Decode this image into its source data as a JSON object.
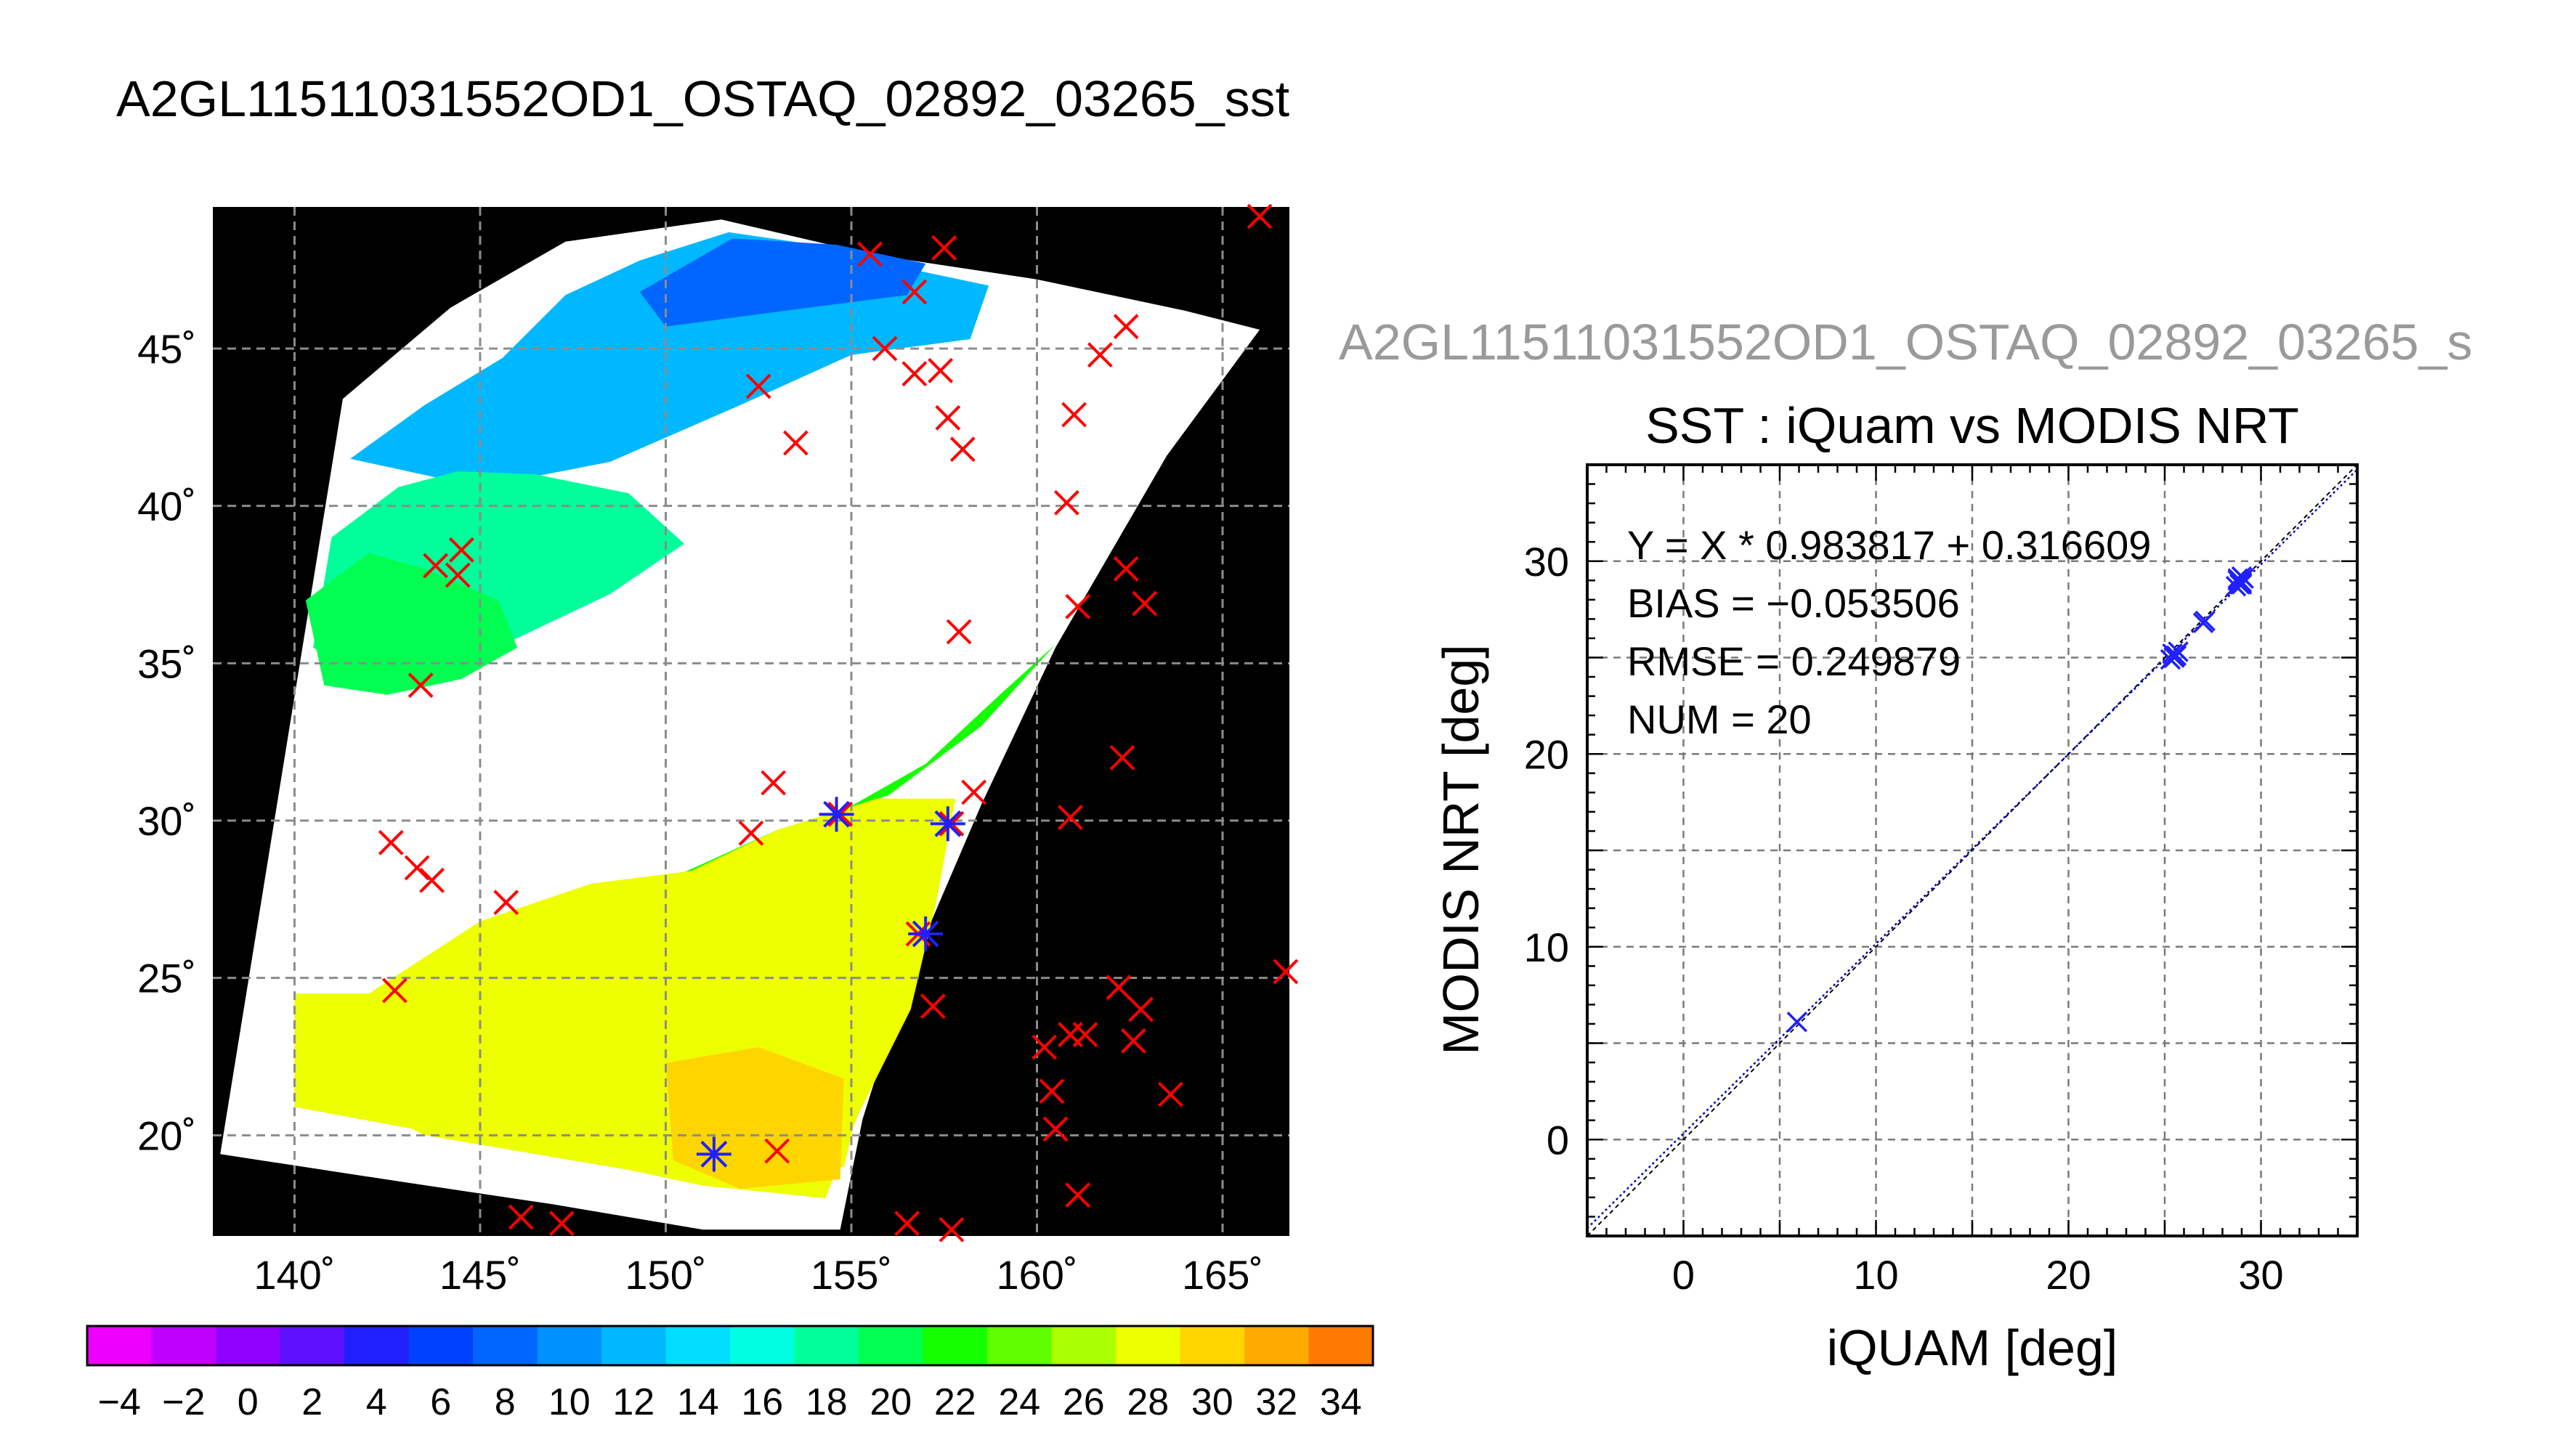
{
  "figure": {
    "main_title": "A2GL11511031552OD1_OSTAQ_02892_03265_sst",
    "right_title": "A2GL11511031552OD1_OSTAQ_02892_03265_s"
  },
  "chart_data": [
    {
      "type": "heatmap",
      "name": "sst-map",
      "lon_range": [
        137.8,
        166.8
      ],
      "lat_range": [
        16.8,
        49.5
      ],
      "lon_ticks": [
        140,
        145,
        150,
        155,
        160,
        165
      ],
      "lat_ticks": [
        20,
        25,
        30,
        35,
        40,
        45
      ],
      "lon_tick_labels": [
        "140˚",
        "145˚",
        "150˚",
        "155˚",
        "160˚",
        "165˚"
      ],
      "lat_tick_labels": [
        "20˚",
        "25˚",
        "30˚",
        "35˚",
        "40˚",
        "45˚"
      ],
      "grid": true,
      "swath_polygon": [
        [
          138.0,
          19.4
        ],
        [
          141.3,
          43.4
        ],
        [
          144.2,
          46.3
        ],
        [
          147.3,
          48.4
        ],
        [
          151.5,
          49.1
        ],
        [
          155.5,
          48.0
        ],
        [
          160.0,
          47.2
        ],
        [
          164.0,
          46.2
        ],
        [
          166.0,
          45.6
        ],
        [
          163.5,
          41.6
        ],
        [
          160.5,
          35.5
        ],
        [
          158.5,
          30.5
        ],
        [
          156.5,
          25.0
        ],
        [
          155.3,
          20.5
        ],
        [
          154.7,
          17.0
        ],
        [
          151.0,
          17.0
        ],
        [
          147.0,
          17.8
        ],
        [
          143.0,
          18.5
        ]
      ],
      "sst_regions": [
        {
          "polygon": [
            [
              141.5,
              41.5
            ],
            [
              143.5,
              43.2
            ],
            [
              145.6,
              44.7
            ],
            [
              147.3,
              46.7
            ],
            [
              149.3,
              47.8
            ],
            [
              151.7,
              48.7
            ],
            [
              154.0,
              48.3
            ],
            [
              156.3,
              47.6
            ],
            [
              158.7,
              47.0
            ],
            [
              158.2,
              45.3
            ],
            [
              155.0,
              44.8
            ],
            [
              152.0,
              43.2
            ],
            [
              148.5,
              41.4
            ],
            [
              145.0,
              40.6
            ]
          ],
          "sst": 11
        },
        {
          "polygon": [
            [
              149.3,
              46.8
            ],
            [
              151.8,
              48.5
            ],
            [
              154.6,
              48.3
            ],
            [
              157.0,
              47.7
            ],
            [
              156.5,
              46.7
            ],
            [
              153.2,
              46.2
            ],
            [
              150.0,
              45.7
            ]
          ],
          "sst": 7
        },
        {
          "polygon": [
            [
              141.0,
              39.0
            ],
            [
              142.8,
              40.6
            ],
            [
              144.4,
              41.1
            ],
            [
              146.5,
              41.0
            ],
            [
              149.0,
              40.4
            ],
            [
              150.5,
              38.8
            ],
            [
              148.5,
              37.2
            ],
            [
              146.0,
              35.8
            ],
            [
              144.0,
              35.0
            ],
            [
              142.0,
              34.5
            ],
            [
              140.5,
              35.5
            ]
          ],
          "sst": 18
        },
        {
          "polygon": [
            [
              140.3,
              37.0
            ],
            [
              142.0,
              38.5
            ],
            [
              143.5,
              38.0
            ],
            [
              145.5,
              37.0
            ],
            [
              146.0,
              35.5
            ],
            [
              144.5,
              34.5
            ],
            [
              142.5,
              34.0
            ],
            [
              140.8,
              34.3
            ]
          ],
          "sst": 20
        },
        {
          "polygon": [
            [
              150.2,
              28.2
            ],
            [
              153.0,
              29.7
            ],
            [
              156.0,
              30.8
            ],
            [
              158.5,
              33.0
            ],
            [
              160.5,
              35.6
            ],
            [
              159.0,
              34.0
            ],
            [
              157.0,
              31.8
            ],
            [
              154.0,
              29.8
            ],
            [
              151.5,
              28.0
            ]
          ],
          "sst": 22
        },
        {
          "polygon": [
            [
              142.0,
              24.5
            ],
            [
              145.0,
              26.8
            ],
            [
              148.0,
              28.0
            ],
            [
              150.7,
              28.4
            ],
            [
              153.0,
              29.7
            ],
            [
              155.7,
              30.7
            ],
            [
              157.8,
              30.7
            ],
            [
              157.3,
              27.5
            ],
            [
              156.6,
              24.0
            ],
            [
              155.2,
              20.7
            ],
            [
              154.3,
              18.0
            ],
            [
              151.0,
              18.4
            ],
            [
              147.0,
              19.4
            ],
            [
              143.2,
              20.2
            ],
            [
              140.0,
              20.9
            ],
            [
              140.0,
              24.5
            ]
          ],
          "sst": 27
        },
        {
          "polygon": [
            [
              143.0,
              24.0
            ],
            [
              147.0,
              25.7
            ],
            [
              151.0,
              26.0
            ],
            [
              154.0,
              25.8
            ],
            [
              155.5,
              22.5
            ],
            [
              154.8,
              19.0
            ],
            [
              151.0,
              18.5
            ],
            [
              147.0,
              19.3
            ],
            [
              143.5,
              20.0
            ],
            [
              141.0,
              21.5
            ]
          ],
          "sst": 28
        },
        {
          "polygon": [
            [
              150.0,
              22.3
            ],
            [
              152.5,
              22.8
            ],
            [
              154.8,
              21.8
            ],
            [
              154.7,
              18.6
            ],
            [
              152.0,
              18.3
            ],
            [
              150.2,
              19.2
            ]
          ],
          "sst": 30
        }
      ],
      "matchup_markers": [
        [
          155.5,
          48.0
        ],
        [
          157.5,
          48.2
        ],
        [
          166.0,
          49.2
        ],
        [
          156.7,
          46.8
        ],
        [
          162.4,
          45.7
        ],
        [
          155.9,
          45.0
        ],
        [
          161.7,
          44.8
        ],
        [
          156.7,
          44.2
        ],
        [
          157.4,
          44.3
        ],
        [
          152.5,
          43.8
        ],
        [
          157.6,
          42.8
        ],
        [
          161.0,
          42.9
        ],
        [
          153.5,
          42.0
        ],
        [
          158.0,
          41.8
        ],
        [
          160.8,
          40.1
        ],
        [
          144.5,
          38.6
        ],
        [
          143.8,
          38.1
        ],
        [
          144.4,
          37.8
        ],
        [
          162.4,
          38.0
        ],
        [
          161.1,
          36.8
        ],
        [
          162.9,
          36.9
        ],
        [
          157.9,
          36.0
        ],
        [
          143.4,
          34.3
        ],
        [
          162.3,
          32.0
        ],
        [
          152.9,
          31.2
        ],
        [
          154.7,
          30.2
        ],
        [
          157.7,
          29.9
        ],
        [
          158.3,
          30.9
        ],
        [
          160.9,
          30.1
        ],
        [
          152.3,
          29.6
        ],
        [
          142.6,
          29.3
        ],
        [
          143.3,
          28.5
        ],
        [
          143.7,
          28.1
        ],
        [
          145.7,
          27.4
        ],
        [
          156.8,
          26.4
        ],
        [
          142.7,
          24.6
        ],
        [
          166.7,
          25.2
        ],
        [
          162.2,
          24.7
        ],
        [
          162.8,
          24.0
        ],
        [
          157.2,
          24.1
        ],
        [
          160.9,
          23.2
        ],
        [
          161.3,
          23.2
        ],
        [
          162.6,
          23.0
        ],
        [
          160.2,
          22.8
        ],
        [
          160.4,
          21.4
        ],
        [
          163.6,
          21.3
        ],
        [
          160.5,
          20.2
        ],
        [
          153.0,
          19.5
        ],
        [
          161.1,
          18.1
        ],
        [
          146.1,
          17.4
        ],
        [
          147.2,
          17.2
        ],
        [
          156.5,
          17.2
        ],
        [
          157.7,
          17.0
        ]
      ],
      "matched_markers": [
        [
          154.6,
          30.2
        ],
        [
          157.6,
          29.9
        ],
        [
          157.0,
          26.4
        ],
        [
          151.3,
          19.4
        ]
      ],
      "colorbar": {
        "min": -5,
        "max": 35,
        "step": 2,
        "ticks": [
          -4,
          -2,
          0,
          2,
          4,
          6,
          8,
          10,
          12,
          14,
          16,
          18,
          20,
          22,
          24,
          26,
          28,
          30,
          32,
          34
        ],
        "tick_labels": [
          "−4",
          "−2",
          "0",
          "2",
          "4",
          "6",
          "8",
          "10",
          "12",
          "14",
          "16",
          "18",
          "20",
          "22",
          "24",
          "26",
          "28",
          "30",
          "32",
          "34"
        ],
        "colors": [
          "#ee00ff",
          "#c000ff",
          "#9000ff",
          "#5c10ff",
          "#2020ff",
          "#0040ff",
          "#0066ff",
          "#0090ff",
          "#00b8ff",
          "#00ddff",
          "#00ffe0",
          "#00ff9a",
          "#00ff50",
          "#14ff00",
          "#60ff00",
          "#aaff00",
          "#eeff00",
          "#ffd500",
          "#ffaa00",
          "#ff7a00",
          "#ff4000"
        ]
      },
      "colors": {
        "land_and_missing": "#000000",
        "cloud": "#ffffff",
        "marker": "#ff0000",
        "matched_marker": "#2020ff"
      }
    },
    {
      "type": "scatter",
      "name": "sst-scatter",
      "title": "SST : iQuam vs MODIS NRT",
      "xlabel": "iQUAM [deg]",
      "ylabel": "MODIS NRT [deg]",
      "xlim": [
        -5,
        35
      ],
      "ylim": [
        -5,
        35
      ],
      "xticks": [
        0,
        10,
        20,
        30
      ],
      "yticks": [
        0,
        10,
        20,
        30
      ],
      "grid": true,
      "annotations": [
        "Y = X * 0.983817 + 0.316609",
        "BIAS = −0.053506",
        "RMSE = 0.249879",
        "NUM = 20"
      ],
      "fit": {
        "slope": 0.983817,
        "intercept": 0.316609
      },
      "points": {
        "x": [
          5.9,
          25.4,
          25.6,
          25.3,
          25.5,
          25.7,
          27.0,
          27.1,
          28.8,
          28.9,
          29.0,
          28.7,
          29.1,
          28.9,
          28.8,
          29.0,
          28.9,
          25.5,
          29.0,
          28.8
        ],
        "y": [
          6.1,
          25.2,
          25.1,
          24.9,
          25.0,
          25.3,
          26.8,
          26.9,
          29.0,
          28.9,
          29.2,
          28.7,
          29.1,
          28.8,
          29.0,
          28.9,
          29.0,
          25.1,
          28.8,
          29.1
        ]
      },
      "colors": {
        "marker": "#2020ff",
        "one_to_one": "#000000",
        "fit_line": "#0000c0"
      }
    }
  ]
}
